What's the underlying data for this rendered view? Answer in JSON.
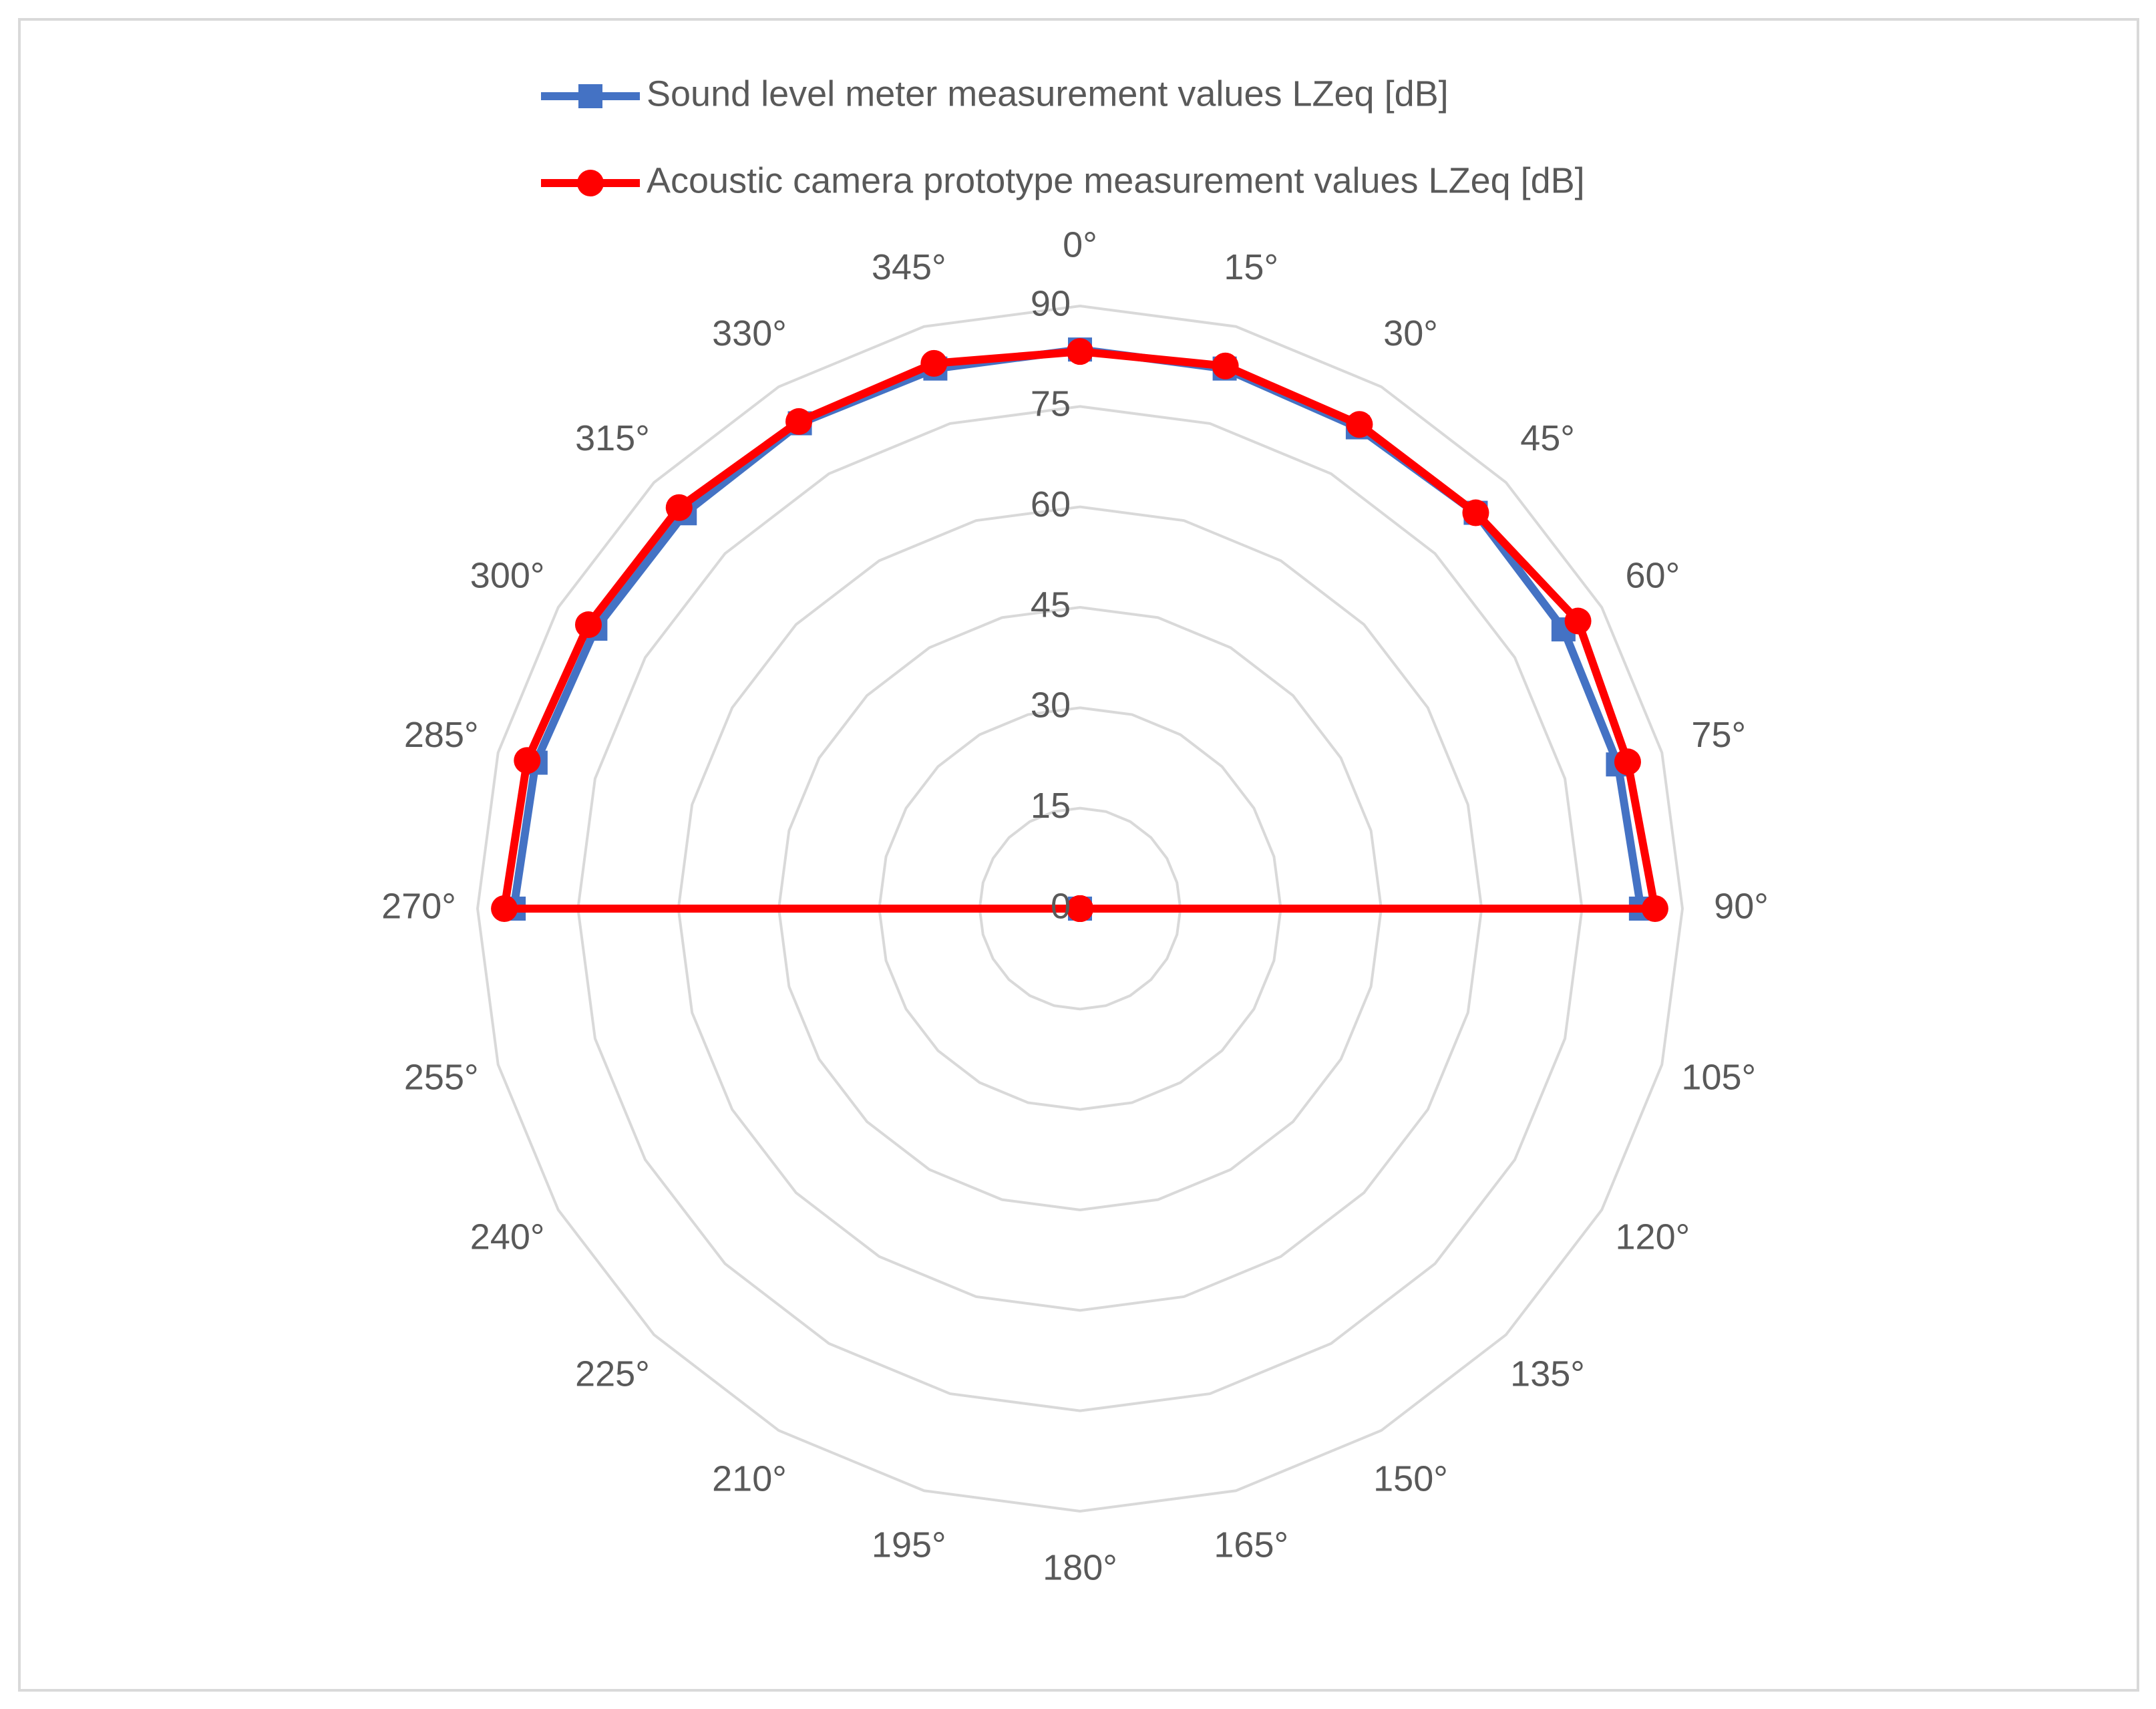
{
  "chart_data": {
    "type": "radar",
    "categories": [
      "0°",
      "15°",
      "30°",
      "45°",
      "60°",
      "75°",
      "90°",
      "105°",
      "120°",
      "135°",
      "150°",
      "165°",
      "180°",
      "195°",
      "210°",
      "225°",
      "240°",
      "255°",
      "270°",
      "285°",
      "300°",
      "315°",
      "330°",
      "345°"
    ],
    "series": [
      {
        "name": "Sound level meter measurement values LZeq [dB]",
        "color": "#4472c4",
        "marker": "square",
        "values": [
          83.5,
          83.5,
          83,
          83.6,
          83.4,
          83.2,
          83.8,
          0,
          0,
          0,
          0,
          0,
          0,
          0,
          0,
          0,
          0,
          0,
          84.6,
          84.2,
          83.6,
          83.5,
          83.7,
          83.5
        ]
      },
      {
        "name": "Acoustic camera prototype measurement values LZeq [dB]",
        "color": "#ff0000",
        "marker": "circle",
        "values": [
          83.2,
          83.9,
          83.5,
          83.6,
          85.9,
          84.7,
          85.9,
          0,
          0,
          0,
          0,
          0,
          0,
          0,
          0,
          0,
          0,
          0,
          86,
          85.5,
          84.8,
          84.7,
          84,
          84.3
        ]
      }
    ],
    "ylim": [
      0,
      90
    ],
    "yticks": [
      0,
      15,
      30,
      45,
      60,
      75,
      90
    ],
    "grid": true,
    "legend": "top"
  }
}
